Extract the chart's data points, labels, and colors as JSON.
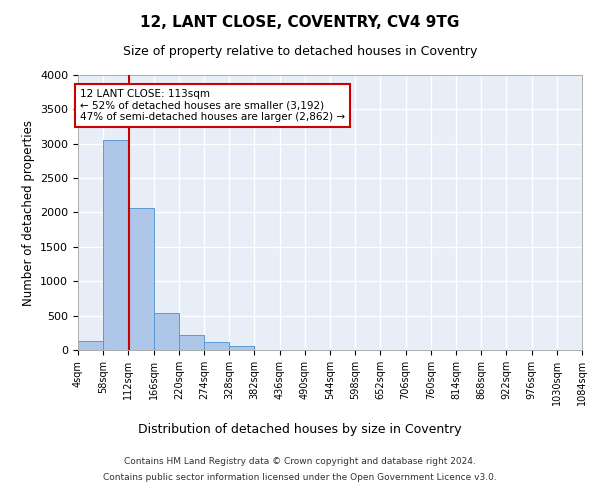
{
  "title": "12, LANT CLOSE, COVENTRY, CV4 9TG",
  "subtitle": "Size of property relative to detached houses in Coventry",
  "xlabel": "Distribution of detached houses by size in Coventry",
  "ylabel": "Number of detached properties",
  "bar_color": "#aec6e8",
  "bar_edge_color": "#5a9ad4",
  "property_line_color": "#cc0000",
  "property_size": 113,
  "annotation_text": "12 LANT CLOSE: 113sqm\n← 52% of detached houses are smaller (3,192)\n47% of semi-detached houses are larger (2,862) →",
  "annotation_box_color": "#ffffff",
  "annotation_border_color": "#cc0000",
  "footer_line1": "Contains HM Land Registry data © Crown copyright and database right 2024.",
  "footer_line2": "Contains public sector information licensed under the Open Government Licence v3.0.",
  "background_color": "#e8eef7",
  "grid_color": "#ffffff",
  "bins": [
    4,
    58,
    112,
    166,
    220,
    274,
    328,
    382,
    436,
    490,
    544,
    598,
    652,
    706,
    760,
    814,
    868,
    922,
    976,
    1030,
    1084
  ],
  "bin_labels": [
    "4sqm",
    "58sqm",
    "112sqm",
    "166sqm",
    "220sqm",
    "274sqm",
    "328sqm",
    "382sqm",
    "436sqm",
    "490sqm",
    "544sqm",
    "598sqm",
    "652sqm",
    "706sqm",
    "760sqm",
    "814sqm",
    "868sqm",
    "922sqm",
    "976sqm",
    "1030sqm",
    "1084sqm"
  ],
  "bar_heights": [
    130,
    3050,
    2070,
    535,
    215,
    110,
    60,
    0,
    0,
    0,
    0,
    0,
    0,
    0,
    0,
    0,
    0,
    0,
    0,
    0
  ],
  "ylim": [
    0,
    4000
  ],
  "yticks": [
    0,
    500,
    1000,
    1500,
    2000,
    2500,
    3000,
    3500,
    4000
  ]
}
